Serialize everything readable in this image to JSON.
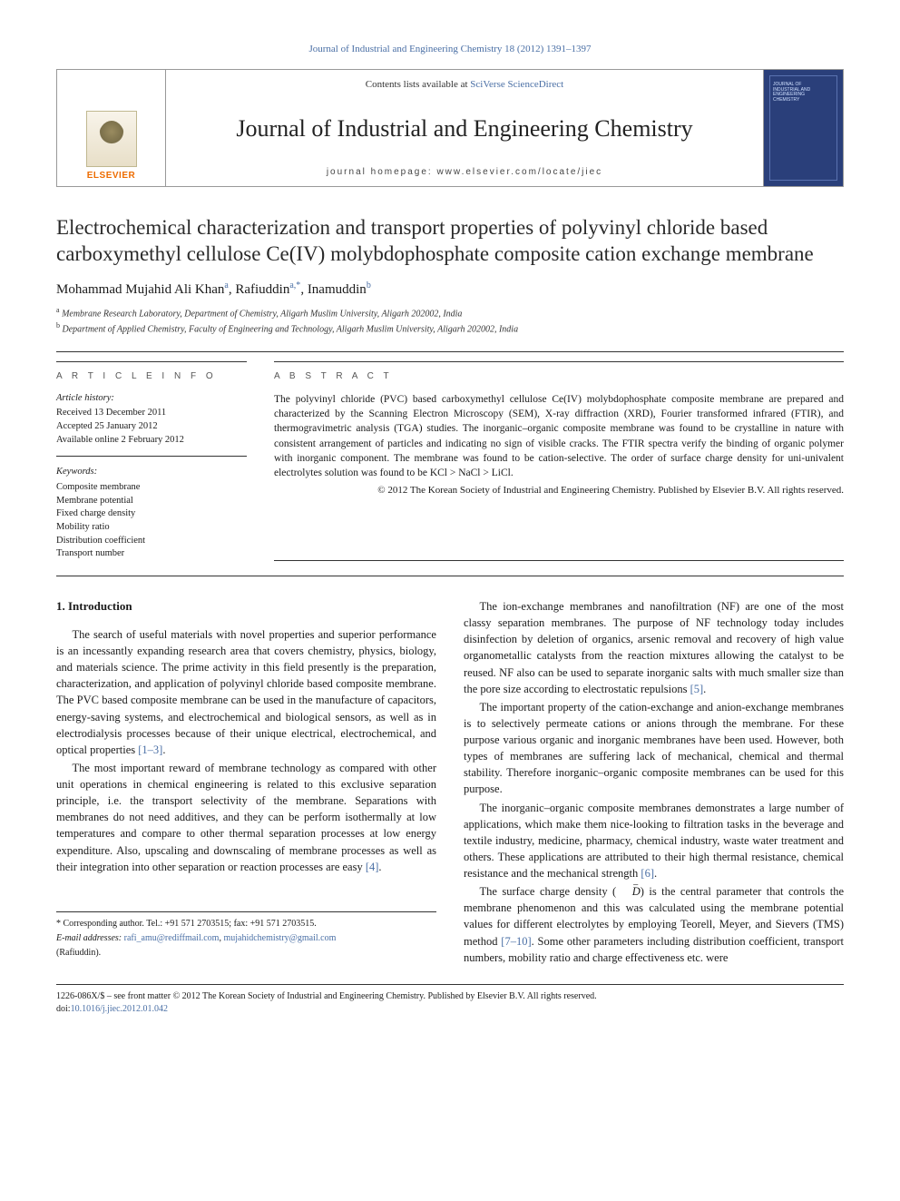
{
  "runningHead": {
    "text": "Journal of Industrial and Engineering Chemistry 18 (2012) 1391–1397",
    "color": "#4a6fa5",
    "fontsize": 11
  },
  "masthead": {
    "contentsLine_prefix": "Contents lists available at ",
    "contentsLine_link": "SciVerse ScienceDirect",
    "journalName": "Journal of Industrial and Engineering Chemistry",
    "homepage_label": "journal homepage: ",
    "homepage_url": "www.elsevier.com/locate/jiec",
    "publisher_label": "ELSEVIER",
    "cover_bg": "#2a3f7a"
  },
  "article": {
    "title": "Electrochemical characterization and transport properties of polyvinyl chloride based carboxymethyl cellulose Ce(IV) molybdophosphate composite cation exchange membrane",
    "authors_html": "Mohammad Mujahid Ali Khan",
    "author_a_sup": "a",
    "author2": "Rafiuddin",
    "author2_sup": "a,*",
    "author3": "Inamuddin",
    "author3_sup": "b",
    "affiliations": {
      "a": "Membrane Research Laboratory, Department of Chemistry, Aligarh Muslim University, Aligarh 202002, India",
      "b": "Department of Applied Chemistry, Faculty of Engineering and Technology, Aligarh Muslim University, Aligarh 202002, India"
    }
  },
  "info": {
    "label": "A R T I C L E   I N F O",
    "history_head": "Article history:",
    "received": "Received 13 December 2011",
    "accepted": "Accepted 25 January 2012",
    "online": "Available online 2 February 2012",
    "keywords_head": "Keywords:",
    "keywords": [
      "Composite membrane",
      "Membrane potential",
      "Fixed charge density",
      "Mobility ratio",
      "Distribution coefficient",
      "Transport number"
    ]
  },
  "abstract": {
    "label": "A B S T R A C T",
    "text": "The polyvinyl chloride (PVC) based carboxymethyl cellulose Ce(IV) molybdophosphate composite membrane are prepared and characterized by the Scanning Electron Microscopy (SEM), X-ray diffraction (XRD), Fourier transformed infrared (FTIR), and thermogravimetric analysis (TGA) studies. The inorganic–organic composite membrane was found to be crystalline in nature with consistent arrangement of particles and indicating no sign of visible cracks. The FTIR spectra verify the binding of organic polymer with inorganic component. The membrane was found to be cation-selective. The order of surface charge density for uni-univalent electrolytes solution was found to be KCl > NaCl > LiCl.",
    "copyright": "© 2012 The Korean Society of Industrial and Engineering Chemistry. Published by Elsevier B.V. All rights reserved."
  },
  "body": {
    "h1": "1. Introduction",
    "p1": "The search of useful materials with novel properties and superior performance is an incessantly expanding research area that covers chemistry, physics, biology, and materials science. The prime activity in this field presently is the preparation, characterization, and application of polyvinyl chloride based composite membrane. The PVC based composite membrane can be used in the manufacture of capacitors, energy-saving systems, and electrochemical and biological sensors, as well as in electrodialysis processes because of their unique electrical, electrochemical, and optical properties ",
    "ref1": "[1–3]",
    "p2": "The most important reward of membrane technology as compared with other unit operations in chemical engineering is related to this exclusive separation principle, i.e. the transport selectivity of the membrane. Separations with membranes do not need additives, and they can be perform isothermally at low temperatures and compare to other thermal separation processes at low energy expenditure. Also, upscaling and downscaling of membrane processes as well as their integration into other separation or reaction processes are easy ",
    "ref2": "[4]",
    "p3": "The ion-exchange membranes and nanofiltration (NF) are one of the most classy separation membranes. The purpose of NF technology today includes disinfection by deletion of organics, arsenic removal and recovery of high value organometallic catalysts from the reaction mixtures allowing the catalyst to be reused. NF also can be used to separate inorganic salts with much smaller size than the pore size according to electrostatic repulsions ",
    "ref3": "[5]",
    "p4": "The important property of the cation-exchange and anion-exchange membranes is to selectively permeate cations or anions through the membrane. For these purpose various organic and inorganic membranes have been used. However, both types of membranes are suffering lack of mechanical, chemical and thermal stability. Therefore inorganic–organic composite membranes can be used for this purpose.",
    "p5": "The inorganic–organic composite membranes demonstrates a large number of applications, which make them nice-looking to filtration tasks in the beverage and textile industry, medicine, pharmacy, chemical industry, waste water treatment and others. These applications are attributed to their high thermal resistance, chemical resistance and the mechanical strength ",
    "ref5": "[6]",
    "p6a": "The surface charge density (",
    "p6b": ") is the central parameter that controls the membrane phenomenon and this was calculated using the membrane potential values for different electrolytes by employing Teorell, Meyer, and Sievers (TMS) method ",
    "ref6": "[7–10]",
    "p6c": ". Some other parameters including distribution coefficient, transport numbers, mobility ratio and charge effectiveness etc. were"
  },
  "corr": {
    "star_line": "* Corresponding author. Tel.: +91 571 2703515; fax: +91 571 2703515.",
    "email_label": "E-mail addresses: ",
    "email1": "rafi_amu@rediffmail.com",
    "email2": "mujahidchemistry@gmail.com",
    "owner": "(Rafiuddin)."
  },
  "footer": {
    "line1": "1226-086X/$ – see front matter © 2012 The Korean Society of Industrial and Engineering Chemistry. Published by Elsevier B.V. All rights reserved.",
    "doi_label": "doi:",
    "doi": "10.1016/j.jiec.2012.01.042"
  },
  "colors": {
    "link": "#4a6fa5",
    "text": "#1a1a1a",
    "rule": "#333333",
    "elsevier_orange": "#ed6c00"
  }
}
